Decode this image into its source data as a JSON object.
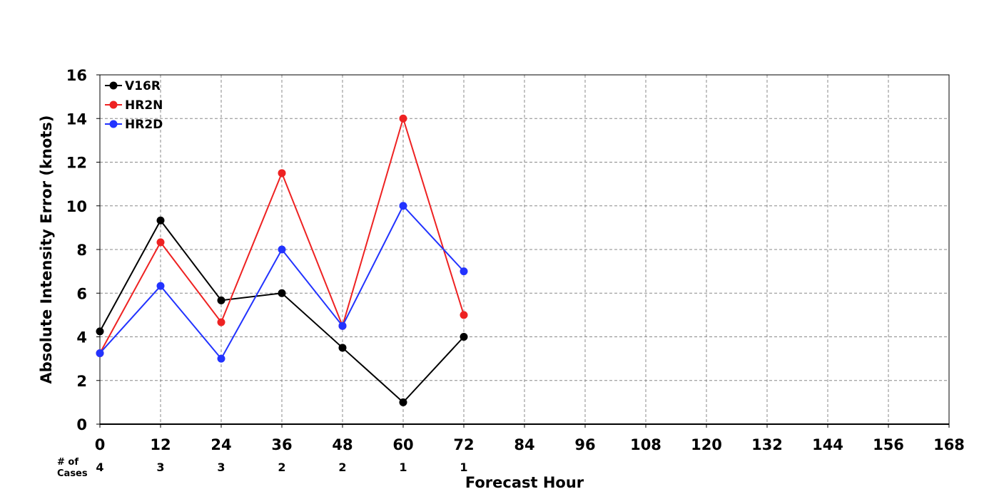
{
  "chart_data": {
    "type": "line",
    "xlabel": "Forecast Hour",
    "ylabel": "Absolute Intensity Error (knots)",
    "xlim": [
      0,
      168
    ],
    "ylim": [
      0,
      16
    ],
    "x_ticks": [
      0,
      12,
      24,
      36,
      48,
      60,
      72,
      84,
      96,
      108,
      120,
      132,
      144,
      156,
      168
    ],
    "y_ticks": [
      0,
      2,
      4,
      6,
      8,
      10,
      12,
      14,
      16
    ],
    "grid": true,
    "legend_position": "top-left",
    "x": [
      0,
      12,
      24,
      36,
      48,
      60,
      72
    ],
    "series": [
      {
        "name": "V16R",
        "color": "#000000",
        "values": [
          4.25,
          9.33,
          5.67,
          6.0,
          3.5,
          1.0,
          4.0
        ]
      },
      {
        "name": "HR2N",
        "color": "#ee2222",
        "values": [
          3.25,
          8.33,
          4.67,
          11.5,
          4.5,
          14.0,
          5.0
        ]
      },
      {
        "name": "HR2D",
        "color": "#2233ff",
        "values": [
          3.25,
          6.33,
          3.0,
          8.0,
          4.5,
          10.0,
          7.0
        ]
      }
    ],
    "cases_label_line1": "# of",
    "cases_label_line2": "Cases",
    "cases": [
      4,
      3,
      3,
      2,
      2,
      1,
      1
    ]
  }
}
